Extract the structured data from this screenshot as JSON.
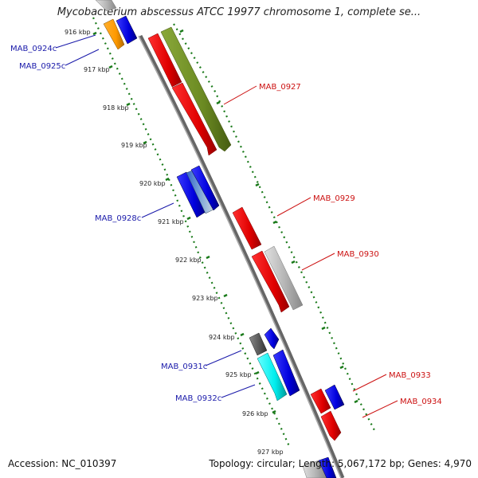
{
  "header": {
    "title": "Mycobacterium abscessus ATCC 19977 chromosome 1, complete se..."
  },
  "footer": {
    "accession": "Accession: NC_010397",
    "summary": "Topology: circular; Length: 5,067,172 bp; Genes: 4,970"
  },
  "colors": {
    "backbone": "#888888",
    "tick": "#1a7a1a",
    "left_label": "#1a1aaa",
    "right_label": "#cc1111"
  },
  "ticks": [
    "916 kbp",
    "917 kbp",
    "918 kbp",
    "919 kbp",
    "920 kbp",
    "921 kbp",
    "922 kbp",
    "923 kbp",
    "924 kbp",
    "925 kbp",
    "926 kbp",
    "927 kbp"
  ],
  "labels_left": [
    "MAB_0924c",
    "MAB_0925c",
    "MAB_0928c",
    "MAB_0931c",
    "MAB_0932c"
  ],
  "labels_right": [
    "MAB_0927",
    "MAB_0929",
    "MAB_0930",
    "MAB_0933",
    "MAB_0934"
  ]
}
